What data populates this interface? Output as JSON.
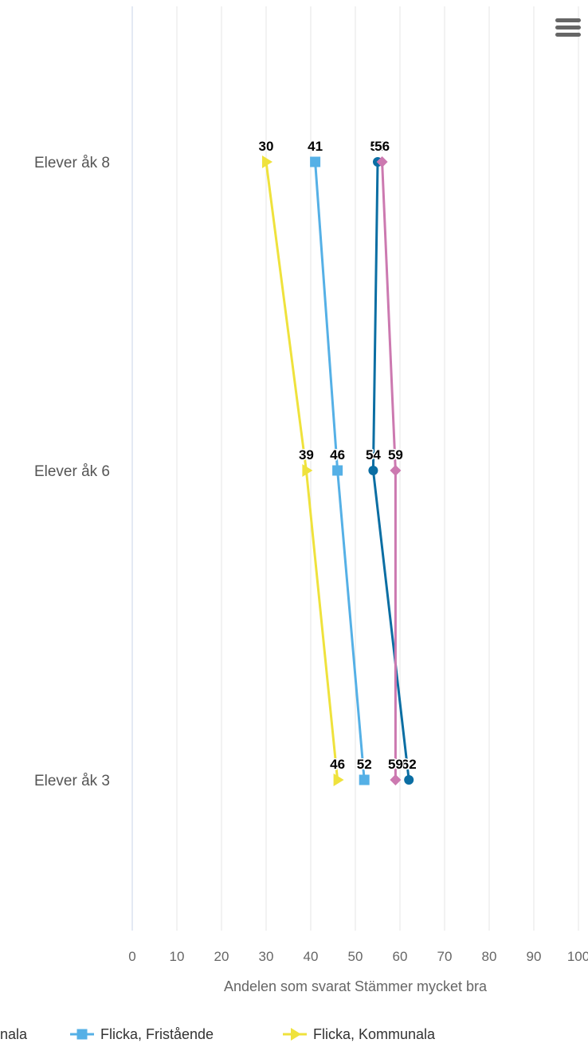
{
  "chart_data": {
    "type": "line",
    "orientation": "inverted",
    "categories": [
      "Elever åk 8",
      "Elever åk 6",
      "Elever åk 3"
    ],
    "xlabel": "Andelen som svarat Stämmer mycket bra",
    "xlim": [
      0,
      100
    ],
    "ticks": [
      "0",
      "10",
      "20",
      "30",
      "40",
      "50",
      "60",
      "70",
      "80",
      "90",
      "100"
    ],
    "grid": true,
    "legend_position": "bottom",
    "legend_visible_labels": [
      "nala",
      "Flicka, Fristående",
      "Flicka, Kommunala"
    ],
    "series": [
      {
        "color": "#0b6ea3",
        "marker": "circle",
        "values": [
          55,
          54,
          62
        ]
      },
      {
        "color": "#cc79b0",
        "marker": "diamond",
        "values": [
          56,
          59,
          59
        ]
      },
      {
        "name": "Flicka, Fristående",
        "color": "#55b0e6",
        "marker": "square",
        "values": [
          41,
          46,
          52
        ]
      },
      {
        "name": "Flicka, Kommunala",
        "color": "#efe23c",
        "marker": "triangle",
        "values": [
          30,
          39,
          46
        ]
      }
    ]
  },
  "menu": {
    "icon": "hamburger-menu-icon"
  }
}
